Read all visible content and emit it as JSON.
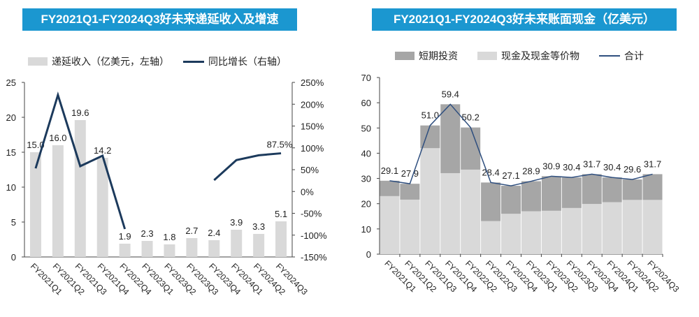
{
  "chart_data": [
    {
      "type": "bar",
      "title": "FY2021Q1-FY2024Q3好未来递延收入及增速",
      "categories": [
        "FY2021Q1",
        "FY2021Q2",
        "FY2021Q3",
        "FY2021Q4",
        "FY2022Q4",
        "FY2023Q1",
        "FY2023Q2",
        "FY2023Q3",
        "FY2023Q4",
        "FY2024Q1",
        "FY2024Q2",
        "FY2024Q3"
      ],
      "series": [
        {
          "name": "递延收入（亿美元，左轴）",
          "type": "bar",
          "axis": "left",
          "color": "#d9d9d9",
          "values": [
            15.0,
            16.0,
            19.6,
            14.2,
            1.9,
            2.3,
            1.8,
            2.7,
            2.4,
            3.9,
            3.3,
            5.1
          ],
          "labels": [
            "15.0",
            "16.0",
            "19.6",
            "14.2",
            "1.9",
            "2.3",
            "1.8",
            "2.7",
            "2.4",
            "3.9",
            "3.3",
            "5.1"
          ]
        },
        {
          "name": "同比增长（右轴）",
          "type": "line",
          "axis": "right",
          "color": "#1c3a5c",
          "values": [
            53,
            221,
            58,
            82,
            -86,
            null,
            null,
            null,
            26,
            72,
            83,
            87.5
          ],
          "point_label": {
            "index": 11,
            "text": "87.5%"
          }
        }
      ],
      "ylim": [
        0,
        25
      ],
      "yticks": [
        "0",
        "5",
        "10",
        "15",
        "20",
        "25"
      ],
      "y2lim": [
        -150,
        250
      ],
      "y2ticks": [
        "-150%",
        "-100%",
        "-50%",
        "0%",
        "50%",
        "100%",
        "150%",
        "200%",
        "250%"
      ],
      "legend": "top"
    },
    {
      "type": "bar",
      "title": "FY2021Q1-FY2024Q3好未来账面现金（亿美元）",
      "categories": [
        "FY2021Q1",
        "FY2021Q2",
        "FY2021Q3",
        "FY2021Q4",
        "FY2022Q2",
        "FY2022Q3",
        "FY2022Q4",
        "FY2023Q1",
        "FY2023Q2",
        "FY2023Q3",
        "FY2023Q4",
        "FY2024Q1",
        "FY2024Q2",
        "FY2024Q3"
      ],
      "series": [
        {
          "name": "短期投资",
          "type": "stacked-bar",
          "color": "#a6a6a6",
          "values": [
            6.1,
            6.3,
            9.0,
            27.3,
            16.7,
            15.3,
            11.1,
            11.9,
            13.7,
            12.1,
            11.8,
            9.8,
            8.1,
            10.2
          ]
        },
        {
          "name": "现金及现金等价物",
          "type": "stacked-bar",
          "color": "#d9d9d9",
          "values": [
            23.0,
            21.6,
            42.0,
            32.1,
            33.5,
            13.1,
            16.0,
            17.0,
            17.2,
            18.3,
            19.9,
            20.6,
            21.5,
            21.5
          ]
        },
        {
          "name": "合计",
          "type": "line",
          "color": "#2f4f7f",
          "values": [
            29.1,
            27.9,
            51.0,
            59.4,
            50.2,
            28.4,
            27.1,
            28.9,
            30.9,
            30.4,
            31.7,
            30.4,
            29.6,
            31.7
          ],
          "labels": [
            "29.1",
            "27.9",
            "51.0",
            "59.4",
            "50.2",
            "28.4",
            "27.1",
            "28.9",
            "30.9",
            "30.4",
            "31.7",
            "30.4",
            "29.6",
            "31.7"
          ]
        }
      ],
      "ylim": [
        0,
        70
      ],
      "yticks": [
        "0",
        "10",
        "20",
        "30",
        "40",
        "50",
        "60",
        "70"
      ],
      "legend": "top"
    }
  ]
}
